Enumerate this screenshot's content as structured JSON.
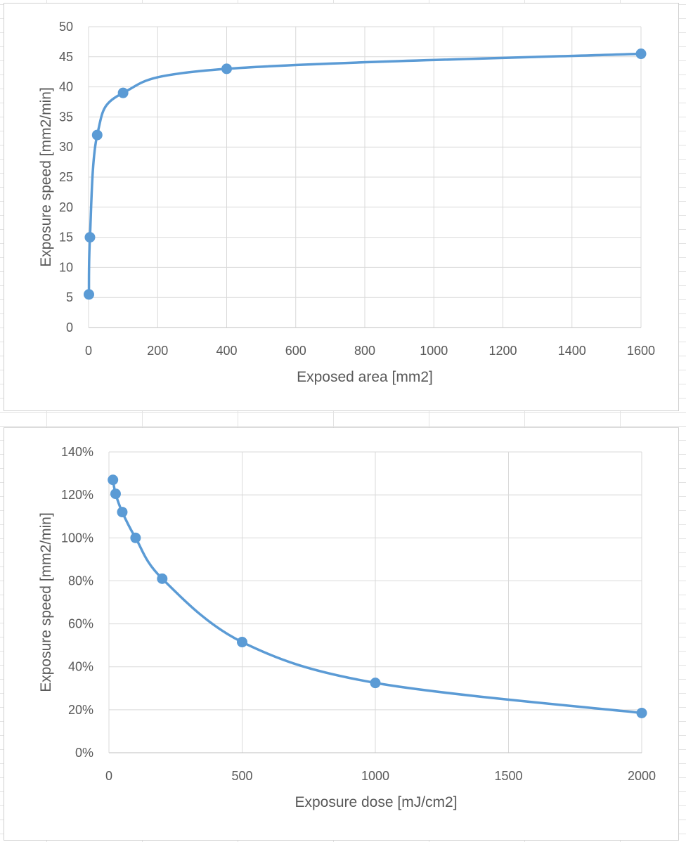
{
  "chart_data": [
    {
      "type": "line",
      "smooth": true,
      "xlabel": "Exposed area [mm2]",
      "ylabel": "Exposure speed [mm2/min]",
      "xlim": [
        0,
        1600
      ],
      "ylim": [
        0,
        50
      ],
      "xticks": [
        "0",
        "200",
        "400",
        "600",
        "800",
        "1000",
        "1200",
        "1400",
        "1600"
      ],
      "yticks": [
        "0",
        "5",
        "10",
        "15",
        "20",
        "25",
        "30",
        "35",
        "40",
        "45",
        "50"
      ],
      "grid": true,
      "markers": true,
      "color": "#5B9BD5",
      "series": [
        {
          "x": [
            1,
            4,
            25,
            100,
            400,
            1600
          ],
          "y": [
            5.5,
            15,
            32,
            39,
            43,
            45.5
          ]
        }
      ]
    },
    {
      "type": "line",
      "smooth": true,
      "xlabel": "Exposure dose [mJ/cm2]",
      "ylabel": "Exposure speed [mm2/min]",
      "xlim": [
        0,
        2000
      ],
      "ylim": [
        0,
        1.4
      ],
      "xticks": [
        "0",
        "500",
        "1000",
        "1500",
        "2000"
      ],
      "yticks": [
        "0%",
        "20%",
        "40%",
        "60%",
        "80%",
        "100%",
        "120%",
        "140%"
      ],
      "grid": true,
      "markers": true,
      "color": "#5B9BD5",
      "series": [
        {
          "x": [
            15,
            25,
            50,
            100,
            200,
            500,
            1000,
            2000
          ],
          "y": [
            1.27,
            1.205,
            1.12,
            1.0,
            0.81,
            0.515,
            0.325,
            0.185
          ]
        }
      ]
    }
  ]
}
